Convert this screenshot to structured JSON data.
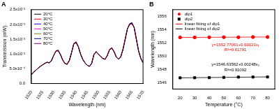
{
  "chart_data": [
    {
      "type": "line",
      "title": "A",
      "x_label": "Wavelength (nm)",
      "y_label": "Transmission (mW)",
      "x": [
        1520,
        1521,
        1522,
        1523,
        1524,
        1525,
        1526,
        1527,
        1528,
        1529,
        1530,
        1531,
        1532,
        1533,
        1534,
        1535,
        1536,
        1537,
        1538,
        1539,
        1540,
        1541,
        1542,
        1543,
        1544,
        1545,
        1546,
        1547,
        1548,
        1549,
        1550,
        1551,
        1552,
        1553,
        1554,
        1555,
        1556,
        1557,
        1558,
        1559,
        1560,
        1561,
        1562,
        1563,
        1564,
        1565,
        1566,
        1567,
        1568,
        1569,
        1570
      ],
      "series": [
        {
          "name": "20°C",
          "color": "#000000",
          "values": [
            0.0003,
            0.00038,
            0.00045,
            0.00052,
            0.00058,
            0.00063,
            0.00068,
            0.00072,
            0.0007,
            0.00078,
            0.00095,
            0.0011,
            0.00112,
            0.00098,
            0.0008,
            0.00068,
            0.00065,
            0.00078,
            0.00105,
            0.00135,
            0.0014,
            0.00125,
            0.001,
            0.00082,
            0.0007,
            0.00062,
            0.00058,
            0.00068,
            0.00098,
            0.00108,
            0.001,
            0.00092,
            0.00085,
            0.00082,
            0.00095,
            0.00115,
            0.0012,
            0.00108,
            0.0009,
            0.00082,
            0.0009,
            0.00115,
            0.0015,
            0.00185,
            0.00202,
            0.00205,
            0.0019,
            0.0015,
            0.0011,
            0.00085,
            0.0007
          ]
        },
        {
          "name": "30°C",
          "color": "#ff0000",
          "values": [
            0.0003,
            0.00038,
            0.00045,
            0.00052,
            0.00058,
            0.00063,
            0.00068,
            0.00072,
            0.0007,
            0.00078,
            0.00095,
            0.0011,
            0.00113,
            0.00098,
            0.0008,
            0.00068,
            0.00065,
            0.00078,
            0.00105,
            0.00135,
            0.00142,
            0.00125,
            0.001,
            0.00082,
            0.0007,
            0.00062,
            0.00058,
            0.00068,
            0.00098,
            0.00108,
            0.001,
            0.00092,
            0.00085,
            0.00082,
            0.00095,
            0.00115,
            0.0012,
            0.00108,
            0.0009,
            0.00082,
            0.0009,
            0.00115,
            0.0015,
            0.00185,
            0.002,
            0.00203,
            0.0019,
            0.0015,
            0.0011,
            0.00085,
            0.0007
          ]
        },
        {
          "name": "40°C",
          "color": "#0000ff",
          "values": [
            0.0003,
            0.00038,
            0.00045,
            0.00052,
            0.00058,
            0.00063,
            0.00068,
            0.00072,
            0.0007,
            0.00078,
            0.00095,
            0.0011,
            0.00111,
            0.00098,
            0.0008,
            0.00068,
            0.00065,
            0.00078,
            0.00105,
            0.00135,
            0.00139,
            0.00125,
            0.001,
            0.00082,
            0.0007,
            0.00062,
            0.00058,
            0.00068,
            0.00098,
            0.00108,
            0.001,
            0.00092,
            0.00085,
            0.00082,
            0.00095,
            0.00115,
            0.00121,
            0.00108,
            0.0009,
            0.00082,
            0.0009,
            0.00115,
            0.0015,
            0.00185,
            0.00202,
            0.00206,
            0.0019,
            0.0015,
            0.0011,
            0.00085,
            0.0007
          ]
        },
        {
          "name": "50°C",
          "color": "#ff00ff",
          "values": [
            0.0003,
            0.00038,
            0.00045,
            0.00052,
            0.00058,
            0.00063,
            0.00068,
            0.00072,
            0.0007,
            0.00078,
            0.00095,
            0.00109,
            0.00112,
            0.00098,
            0.0008,
            0.00068,
            0.00065,
            0.00078,
            0.00105,
            0.00135,
            0.00141,
            0.00125,
            0.001,
            0.00082,
            0.0007,
            0.00062,
            0.00058,
            0.00068,
            0.00098,
            0.00107,
            0.001,
            0.00092,
            0.00085,
            0.00082,
            0.00095,
            0.00115,
            0.0012,
            0.00108,
            0.0009,
            0.00082,
            0.0009,
            0.00115,
            0.0015,
            0.00185,
            0.00202,
            0.00204,
            0.0019,
            0.0015,
            0.0011,
            0.00085,
            0.0007
          ]
        },
        {
          "name": "60°C",
          "color": "#808000",
          "values": [
            0.0003,
            0.00038,
            0.00045,
            0.00052,
            0.00058,
            0.00063,
            0.00068,
            0.00072,
            0.0007,
            0.00078,
            0.00095,
            0.0011,
            0.00114,
            0.00098,
            0.0008,
            0.00068,
            0.00065,
            0.00078,
            0.00105,
            0.00133,
            0.0014,
            0.00125,
            0.001,
            0.00082,
            0.0007,
            0.00062,
            0.00058,
            0.00068,
            0.00098,
            0.00108,
            0.001,
            0.00092,
            0.00085,
            0.00082,
            0.00095,
            0.00115,
            0.0012,
            0.00108,
            0.0009,
            0.00082,
            0.0009,
            0.00115,
            0.0015,
            0.00185,
            0.00202,
            0.00207,
            0.0019,
            0.0015,
            0.0011,
            0.00085,
            0.0007
          ]
        },
        {
          "name": "70°C",
          "color": "#000080",
          "values": [
            0.0003,
            0.00038,
            0.00045,
            0.00052,
            0.00058,
            0.00063,
            0.00068,
            0.00072,
            0.0007,
            0.00078,
            0.00095,
            0.0011,
            0.00112,
            0.00098,
            0.0008,
            0.00068,
            0.00065,
            0.00078,
            0.00105,
            0.00135,
            0.00138,
            0.00125,
            0.001,
            0.00082,
            0.0007,
            0.00062,
            0.00058,
            0.00068,
            0.00098,
            0.00108,
            0.001,
            0.00092,
            0.00085,
            0.00082,
            0.00095,
            0.00115,
            0.00119,
            0.00108,
            0.0009,
            0.00082,
            0.0009,
            0.00115,
            0.0015,
            0.00185,
            0.00202,
            0.00202,
            0.0019,
            0.0015,
            0.0011,
            0.00085,
            0.0007
          ]
        },
        {
          "name": "80°C",
          "color": "#800080",
          "values": [
            0.0003,
            0.00038,
            0.00045,
            0.00052,
            0.00058,
            0.00063,
            0.00068,
            0.00072,
            0.0007,
            0.00078,
            0.00095,
            0.0011,
            0.0011,
            0.00098,
            0.0008,
            0.00068,
            0.00065,
            0.00078,
            0.00105,
            0.00135,
            0.00137,
            0.00125,
            0.001,
            0.00082,
            0.0007,
            0.00062,
            0.00058,
            0.00068,
            0.00098,
            0.00108,
            0.001,
            0.00092,
            0.00085,
            0.00082,
            0.00095,
            0.00115,
            0.0012,
            0.00108,
            0.0009,
            0.00082,
            0.0009,
            0.00115,
            0.0015,
            0.00185,
            0.00199,
            0.00203,
            0.0019,
            0.0015,
            0.0011,
            0.00085,
            0.0007
          ]
        }
      ],
      "xlim": [
        1520,
        1570
      ],
      "xticks": [
        1520,
        1525,
        1530,
        1535,
        1540,
        1545,
        1550,
        1555,
        1560,
        1565,
        1570
      ],
      "ylim": [
        0,
        0.0025
      ],
      "yticks": [
        {
          "value": 0,
          "label": "0.0"
        },
        {
          "value": 0.0005,
          "label": "5.0x10⁻⁴"
        },
        {
          "value": 0.001,
          "label": "1.0x10⁻³"
        },
        {
          "value": 0.0015,
          "label": "1.5x10⁻³"
        },
        {
          "value": 0.002,
          "label": "2.0x10⁻³"
        },
        {
          "value": 0.0025,
          "label": "2.5x10⁻³"
        }
      ],
      "grid": false,
      "legend": "upper left"
    },
    {
      "type": "scatter",
      "title": "B",
      "x_label": "Temperature (°C)",
      "y_label": "Wavelength (nm)",
      "series": [
        {
          "name": "dip1",
          "type": "scatter",
          "marker": "circle",
          "color": "#ff0000",
          "x": [
            20,
            30,
            40,
            50,
            60,
            70,
            80
          ],
          "values": [
            1552.8,
            1552.8,
            1552.82,
            1552.84,
            1552.82,
            1552.86,
            1552.86
          ]
        },
        {
          "name": "dip2",
          "type": "scatter",
          "marker": "square",
          "color": "#000000",
          "x": [
            20,
            30,
            40,
            50,
            60,
            70,
            80
          ],
          "values": [
            1546.69,
            1546.71,
            1546.72,
            1546.76,
            1546.8,
            1546.81,
            1546.82
          ]
        },
        {
          "name": "linear fitting of dip1",
          "type": "line",
          "line_style": "solid",
          "color": "#ff0000",
          "x": [
            20,
            80
          ],
          "values": [
            1552.79481,
            1552.86741
          ]
        },
        {
          "name": "linear fitting of dip2",
          "type": "line",
          "line_style": "solid",
          "color": "#000000",
          "x": [
            20,
            80
          ],
          "values": [
            1546.68522,
            1546.83402
          ]
        }
      ],
      "annotations": [
        "y=1552.77061+0.00121x₁",
        "R²=0.61781",
        "y=1546.63562+0.00248x₂",
        "R²=0.91092"
      ],
      "xlim": [
        15,
        85
      ],
      "xticks": [
        20,
        30,
        40,
        50,
        60,
        70,
        80
      ],
      "ylim": [
        1545,
        1557
      ],
      "yticks": [
        1546,
        1548,
        1550,
        1552,
        1554,
        1556
      ],
      "grid": false,
      "legend": "upper left"
    }
  ]
}
